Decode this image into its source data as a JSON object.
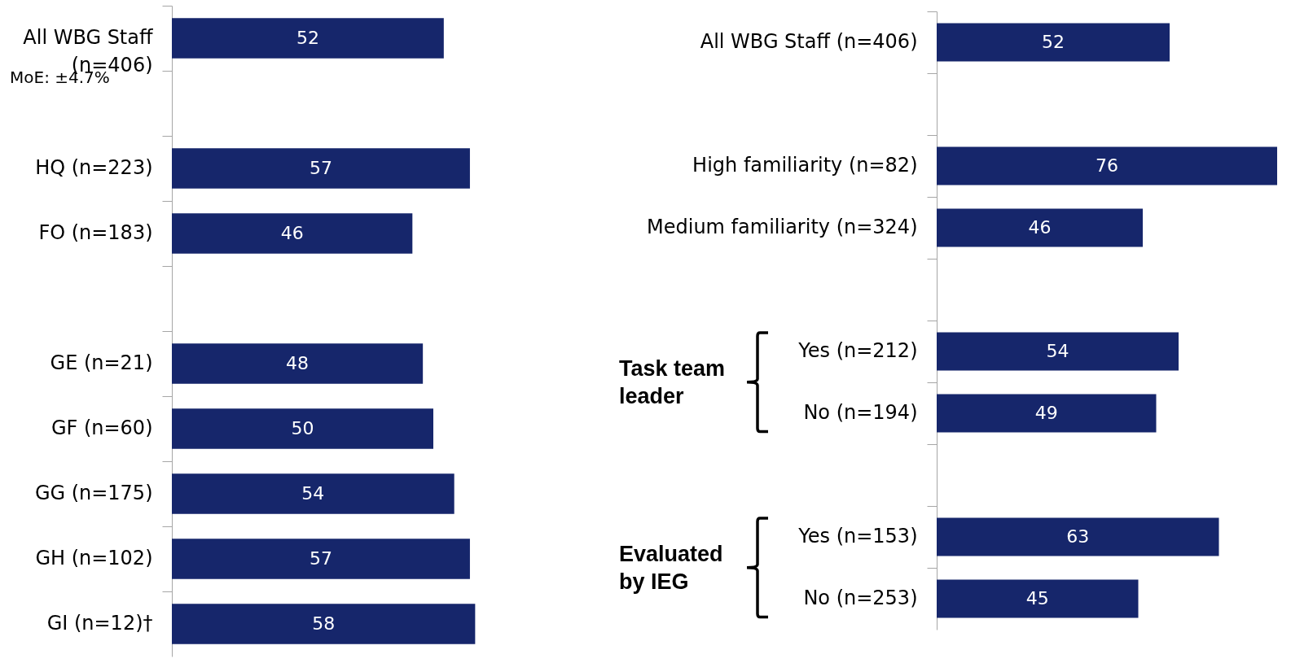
{
  "chart_data": [
    {
      "type": "bar",
      "orientation": "horizontal",
      "categories": [
        "All WBG Staff (n=406)",
        null,
        "HQ (n=223)",
        "FO (n=183)",
        null,
        "GE (n=21)",
        "GF (n=60)",
        "GG (n=175)",
        "GH (n=102)",
        "GI (n=12)†"
      ],
      "values": [
        52,
        null,
        57,
        46,
        null,
        48,
        50,
        54,
        57,
        58
      ],
      "color": "#16266b",
      "data_labels": true,
      "annotations": [
        "MoE: ±4.7%"
      ]
    },
    {
      "type": "bar",
      "orientation": "horizontal",
      "categories": [
        "All WBG Staff (n=406)",
        null,
        "High familiarity (n=82)",
        "Medium familiarity (n=324)",
        null,
        "Yes (n=212)",
        "No (n=194)",
        null,
        "Yes (n=153)",
        "No (n=253)"
      ],
      "values": [
        52,
        null,
        76,
        46,
        null,
        54,
        49,
        null,
        63,
        45
      ],
      "color": "#16266b",
      "data_labels": true,
      "annotations": [
        "Task team leader",
        "Evaluated by IEG"
      ]
    }
  ]
}
